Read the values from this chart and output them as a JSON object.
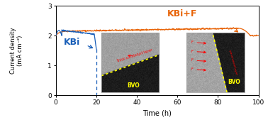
{
  "title": "",
  "xlabel": "Time (h)",
  "ylabel": "Current density\n(mA cm⁻²)",
  "xlim": [
    0,
    100
  ],
  "ylim": [
    0,
    3
  ],
  "yticks": [
    0,
    1,
    2,
    3
  ],
  "xticks": [
    0,
    20,
    40,
    60,
    80,
    100
  ],
  "kbi_color": "#1a5fb8",
  "kbif_color": "#e8650a",
  "kbi_label": "KBi",
  "kbif_label": "KBi+F",
  "background_color": "#ffffff",
  "label_fontsize": 7,
  "tick_fontsize": 6.5
}
